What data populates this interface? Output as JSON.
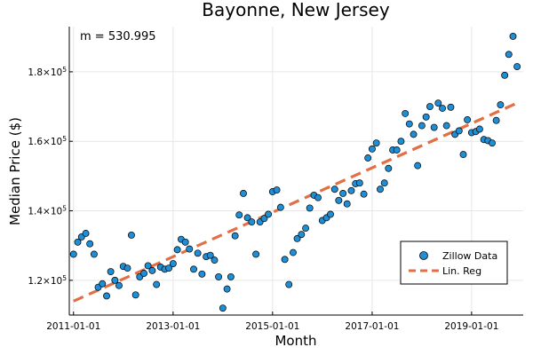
{
  "chart_data": {
    "type": "scatter",
    "title": "Bayonne, New Jersey",
    "xlabel": "Month",
    "ylabel": "Median Price ($)",
    "annotation": "m = 530.995",
    "grid": true,
    "legend_position": "bottom-right",
    "xlim": [
      "2010-12-01",
      "2020-01-15"
    ],
    "ylim": [
      110000,
      193000
    ],
    "x_ticks": [
      "2011-01-01",
      "2013-01-01",
      "2015-01-01",
      "2017-01-01",
      "2019-01-01"
    ],
    "y_ticks": [
      {
        "value": 120000,
        "mantissa": "1.2",
        "base": "×10",
        "exp": "5"
      },
      {
        "value": 140000,
        "mantissa": "1.4",
        "base": "×10",
        "exp": "5"
      },
      {
        "value": 160000,
        "mantissa": "1.6",
        "base": "×10",
        "exp": "5"
      },
      {
        "value": 180000,
        "mantissa": "1.8",
        "base": "×10",
        "exp": "5"
      }
    ],
    "series": [
      {
        "name": "Zillow Data",
        "kind": "scatter",
        "color": "#1e8fd6",
        "x": [
          "2011-01-01",
          "2011-02-01",
          "2011-03-01",
          "2011-04-01",
          "2011-05-01",
          "2011-06-01",
          "2011-07-01",
          "2011-08-01",
          "2011-09-01",
          "2011-10-01",
          "2011-11-01",
          "2011-12-01",
          "2012-01-01",
          "2012-02-01",
          "2012-03-01",
          "2012-04-01",
          "2012-05-01",
          "2012-06-01",
          "2012-07-01",
          "2012-08-01",
          "2012-09-01",
          "2012-10-01",
          "2012-11-01",
          "2012-12-01",
          "2013-01-01",
          "2013-02-01",
          "2013-03-01",
          "2013-04-01",
          "2013-05-01",
          "2013-06-01",
          "2013-07-01",
          "2013-08-01",
          "2013-09-01",
          "2013-10-01",
          "2013-11-01",
          "2013-12-01",
          "2014-01-01",
          "2014-02-01",
          "2014-03-01",
          "2014-04-01",
          "2014-05-01",
          "2014-06-01",
          "2014-07-01",
          "2014-08-01",
          "2014-09-01",
          "2014-10-01",
          "2014-11-01",
          "2014-12-01",
          "2015-01-01",
          "2015-02-01",
          "2015-03-01",
          "2015-04-01",
          "2015-05-01",
          "2015-06-01",
          "2015-07-01",
          "2015-08-01",
          "2015-09-01",
          "2015-10-01",
          "2015-11-01",
          "2015-12-01",
          "2016-01-01",
          "2016-02-01",
          "2016-03-01",
          "2016-04-01",
          "2016-05-01",
          "2016-06-01",
          "2016-07-01",
          "2016-08-01",
          "2016-09-01",
          "2016-10-01",
          "2016-11-01",
          "2016-12-01",
          "2017-01-01",
          "2017-02-01",
          "2017-03-01",
          "2017-04-01",
          "2017-05-01",
          "2017-06-01",
          "2017-07-01",
          "2017-08-01",
          "2017-09-01",
          "2017-10-01",
          "2017-11-01",
          "2017-12-01",
          "2018-01-01",
          "2018-02-01",
          "2018-03-01",
          "2018-04-01",
          "2018-05-01",
          "2018-06-01",
          "2018-07-01",
          "2018-08-01",
          "2018-09-01",
          "2018-10-01",
          "2018-11-01",
          "2018-12-01",
          "2019-01-01",
          "2019-02-01",
          "2019-03-01",
          "2019-04-01",
          "2019-05-01",
          "2019-06-01",
          "2019-07-01",
          "2019-08-01",
          "2019-09-01",
          "2019-10-01",
          "2019-11-01",
          "2019-12-01"
        ],
        "y": [
          127500,
          131000,
          132500,
          133500,
          130500,
          127500,
          118000,
          119000,
          115500,
          122500,
          120000,
          118500,
          124000,
          123500,
          133000,
          115800,
          121000,
          122000,
          124200,
          122800,
          118800,
          123800,
          123200,
          123500,
          124800,
          128800,
          131800,
          131000,
          129000,
          123200,
          127800,
          121800,
          126800,
          127200,
          125800,
          121000,
          112000,
          117500,
          121000,
          132800,
          138800,
          145000,
          138000,
          136800,
          127500,
          136800,
          137800,
          139000,
          145500,
          146000,
          141000,
          126000,
          118800,
          128000,
          132000,
          133200,
          135000,
          140800,
          144500,
          143800,
          137200,
          138000,
          139000,
          146200,
          143000,
          145000,
          142000,
          145800,
          147800,
          148000,
          144800,
          155200,
          157800,
          159500,
          146200,
          148000,
          152200,
          157500,
          157500,
          160000,
          168000,
          165000,
          162000,
          153000,
          164500,
          167000,
          170000,
          164000,
          171000,
          169500,
          164500,
          169800,
          162000,
          163000,
          156200,
          166200,
          162500,
          162800,
          163500,
          160500,
          160200,
          159500,
          166000,
          170500,
          179000,
          185000,
          190200,
          181500
        ]
      },
      {
        "name": "Lin. Reg",
        "kind": "line",
        "color": "#e26f46",
        "x": [
          "2011-01-01",
          "2019-12-01"
        ],
        "y": [
          114000,
          171000
        ]
      }
    ]
  }
}
